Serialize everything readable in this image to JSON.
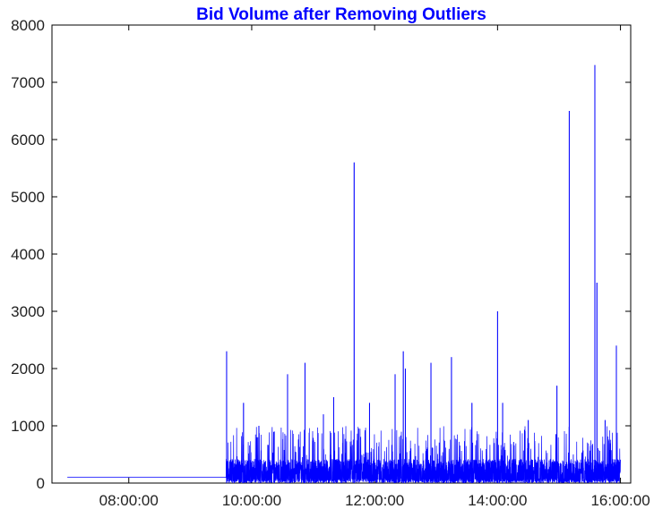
{
  "chart_data": {
    "type": "line",
    "title": "Bid Volume after Removing Outliers",
    "xlabel": "",
    "ylabel": "",
    "x_unit": "time_of_day",
    "xlim": [
      "06:45:00",
      "16:10:00"
    ],
    "ylim": [
      0,
      8000
    ],
    "x_ticks": [
      "08:00:00",
      "10:00:00",
      "12:00:00",
      "14:00:00",
      "16:00:00"
    ],
    "y_ticks": [
      0,
      1000,
      2000,
      3000,
      4000,
      5000,
      6000,
      7000,
      8000
    ],
    "grid": false,
    "legend": "none",
    "series": [
      {
        "color": "#0000ff",
        "baseline": {
          "x": [
            "07:00:00",
            "09:35:00"
          ],
          "y": 100
        },
        "dense_band": {
          "x": [
            "09:35:00",
            "16:00:00"
          ],
          "y_range": [
            0,
            420
          ]
        },
        "spikes": [
          {
            "x": "09:35:30",
            "y": 2300
          },
          {
            "x": "09:52:00",
            "y": 1400
          },
          {
            "x": "10:07:00",
            "y": 1000
          },
          {
            "x": "10:22:00",
            "y": 900
          },
          {
            "x": "10:35:00",
            "y": 1900
          },
          {
            "x": "10:52:00",
            "y": 2100
          },
          {
            "x": "11:10:00",
            "y": 1200
          },
          {
            "x": "11:20:00",
            "y": 1500
          },
          {
            "x": "11:40:00",
            "y": 5600
          },
          {
            "x": "11:55:00",
            "y": 1400
          },
          {
            "x": "12:20:00",
            "y": 1900
          },
          {
            "x": "12:28:00",
            "y": 2300
          },
          {
            "x": "12:30:00",
            "y": 2000
          },
          {
            "x": "12:55:00",
            "y": 2100
          },
          {
            "x": "13:15:00",
            "y": 2200
          },
          {
            "x": "13:35:00",
            "y": 1400
          },
          {
            "x": "14:00:00",
            "y": 3000
          },
          {
            "x": "14:05:00",
            "y": 1400
          },
          {
            "x": "14:30:00",
            "y": 1100
          },
          {
            "x": "14:58:00",
            "y": 1700
          },
          {
            "x": "15:10:00",
            "y": 6500
          },
          {
            "x": "15:35:00",
            "y": 7300
          },
          {
            "x": "15:37:00",
            "y": 3500
          },
          {
            "x": "15:45:00",
            "y": 1100
          },
          {
            "x": "15:56:00",
            "y": 2400
          }
        ]
      }
    ]
  }
}
